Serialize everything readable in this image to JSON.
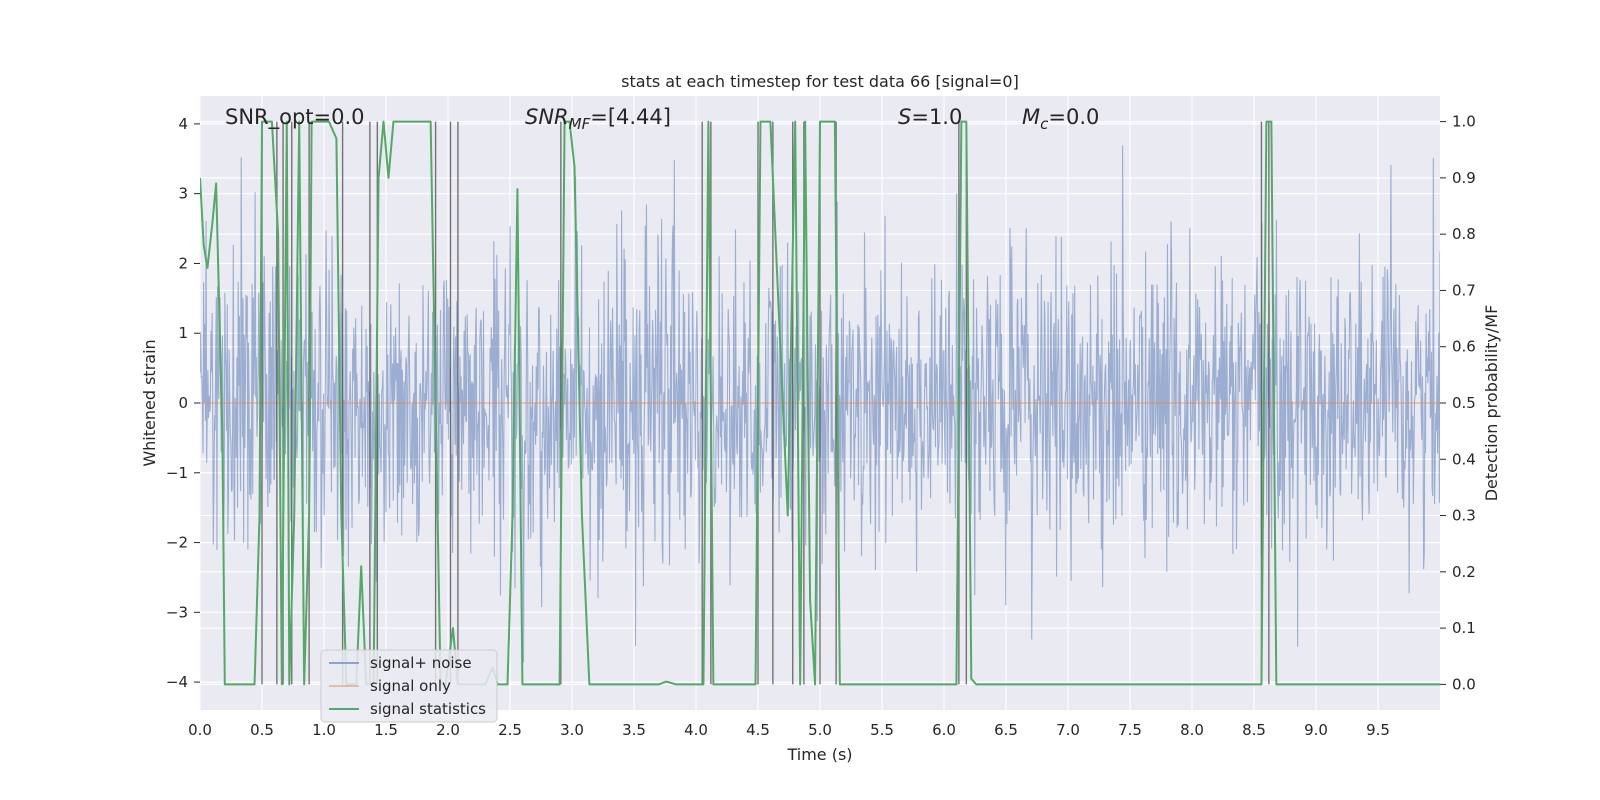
{
  "chart_data": {
    "type": "line",
    "title": "stats at each timestep for test data 66 [signal=0]",
    "xlabel": "Time (s)",
    "ylabel": "Whitened strain",
    "ylabel_right": "Detection probability/MF",
    "xlim": [
      0.0,
      10.0
    ],
    "ylim": [
      -4.4,
      4.4
    ],
    "ylim_right": [
      -0.0455,
      1.0455
    ],
    "x_ticks": [
      "0.0",
      "0.5",
      "1.0",
      "1.5",
      "2.0",
      "2.5",
      "3.0",
      "3.5",
      "4.0",
      "4.5",
      "5.0",
      "5.5",
      "6.0",
      "6.5",
      "7.0",
      "7.5",
      "8.0",
      "8.5",
      "9.0",
      "9.5"
    ],
    "y_ticks": [
      "4",
      "3",
      "2",
      "1",
      "0",
      "−1",
      "−2",
      "−3",
      "−4"
    ],
    "y_right_ticks": [
      "1.0",
      "0.9",
      "0.8",
      "0.7",
      "0.6",
      "0.5",
      "0.4",
      "0.3",
      "0.2",
      "0.1",
      "0.0"
    ],
    "annotations": {
      "snr_opt": "SNR_opt=0.0",
      "snr_mf_main": "SNR",
      "snr_mf_sub": "MF",
      "snr_mf_value": "=[4.44]",
      "s_main": "S",
      "s_value": "=1.0",
      "mc_main": "M",
      "mc_sub": "c",
      "mc_value": "=0.0"
    },
    "grid": true,
    "legend_placement": "lower-left",
    "series": [
      {
        "name": "signal+ noise",
        "color": "#4c72b0",
        "description_values": "whitened noise, amplitude roughly within [-3.8, 3.8]",
        "envelope_typical": [
          -2.4,
          2.4
        ],
        "peaks": [
          3.6,
          3.4,
          3.2,
          3.3,
          3.2,
          3.5,
          3.1,
          3.9,
          3.0,
          3.3,
          3.2
        ]
      },
      {
        "name": "signal only",
        "color": "#dd8452",
        "x": [
          0.0,
          10.0
        ],
        "y": [
          0.0,
          0.0
        ]
      },
      {
        "name": "signal statistics",
        "color": "#55a868",
        "axis": "right",
        "x": [
          0.0,
          0.03,
          0.06,
          0.1,
          0.13,
          0.18,
          0.2,
          0.28,
          0.36,
          0.44,
          0.48,
          0.5,
          0.52,
          0.58,
          0.63,
          0.66,
          0.7,
          0.72,
          0.76,
          0.8,
          0.84,
          0.88,
          0.9,
          0.92,
          1.04,
          1.1,
          1.14,
          1.18,
          1.22,
          1.26,
          1.3,
          1.34,
          1.4,
          1.44,
          1.48,
          1.52,
          1.56,
          1.58,
          1.62,
          1.86,
          1.9,
          1.94,
          1.98,
          2.04,
          2.08,
          2.12,
          2.16,
          2.2,
          2.3,
          2.36,
          2.4,
          2.44,
          2.48,
          2.52,
          2.56,
          2.6,
          2.64,
          2.68,
          2.72,
          2.9,
          2.94,
          2.98,
          3.02,
          3.08,
          3.14,
          3.22,
          3.5,
          3.7,
          3.76,
          3.84,
          4.0,
          4.06,
          4.1,
          4.14,
          4.18,
          4.4,
          4.48,
          4.52,
          4.56,
          4.6,
          4.7,
          4.74,
          4.8,
          4.84,
          4.88,
          4.92,
          4.96,
          5.0,
          5.06,
          5.12,
          5.16,
          5.2,
          5.5,
          5.8,
          6.1,
          6.14,
          6.18,
          6.22,
          6.26,
          6.3,
          6.5,
          7.0,
          7.5,
          8.0,
          8.5,
          8.56,
          8.6,
          8.64,
          8.68,
          8.72,
          9.0,
          9.5,
          10.0
        ],
        "y": [
          0.9,
          0.78,
          0.74,
          0.82,
          0.89,
          0.45,
          0.0,
          0.0,
          0.0,
          0.0,
          0.3,
          1.0,
          1.0,
          1.0,
          0.8,
          0.0,
          1.0,
          0.0,
          0.3,
          1.0,
          0.0,
          0.3,
          1.0,
          1.0,
          1.0,
          0.97,
          0.3,
          0.0,
          0.0,
          0.0,
          0.21,
          0.0,
          0.0,
          0.9,
          1.0,
          0.9,
          1.0,
          1.0,
          1.0,
          1.0,
          0.5,
          0.0,
          0.0,
          0.1,
          0.0,
          0.0,
          0.0,
          0.0,
          0.0,
          0.03,
          0.0,
          0.0,
          0.0,
          0.3,
          0.88,
          0.0,
          0.0,
          0.0,
          0.0,
          0.0,
          1.0,
          1.0,
          0.92,
          0.3,
          0.0,
          0.0,
          0.0,
          0.0,
          0.005,
          0.0,
          0.0,
          0.0,
          1.0,
          0.0,
          0.0,
          0.0,
          0.0,
          1.0,
          1.0,
          1.0,
          0.5,
          0.3,
          1.0,
          0.0,
          1.0,
          0.15,
          0.0,
          1.0,
          1.0,
          1.0,
          0.0,
          0.0,
          0.0,
          0.0,
          0.0,
          1.0,
          1.0,
          0.01,
          0.0,
          0.0,
          0.0,
          0.0,
          0.0,
          0.0,
          0.0,
          0.0,
          1.0,
          1.0,
          0.0,
          0.0,
          0.0,
          0.0,
          0.0
        ]
      }
    ],
    "vertical_lines": {
      "color": "#555555",
      "x": [
        0.5,
        0.62,
        0.67,
        0.74,
        0.88,
        1.15,
        1.37,
        1.43,
        1.9,
        2.02,
        2.08,
        2.91,
        4.05,
        4.12,
        4.5,
        4.62,
        4.78,
        4.87,
        5.0,
        5.13,
        6.12,
        6.18,
        8.56,
        8.62
      ]
    }
  }
}
